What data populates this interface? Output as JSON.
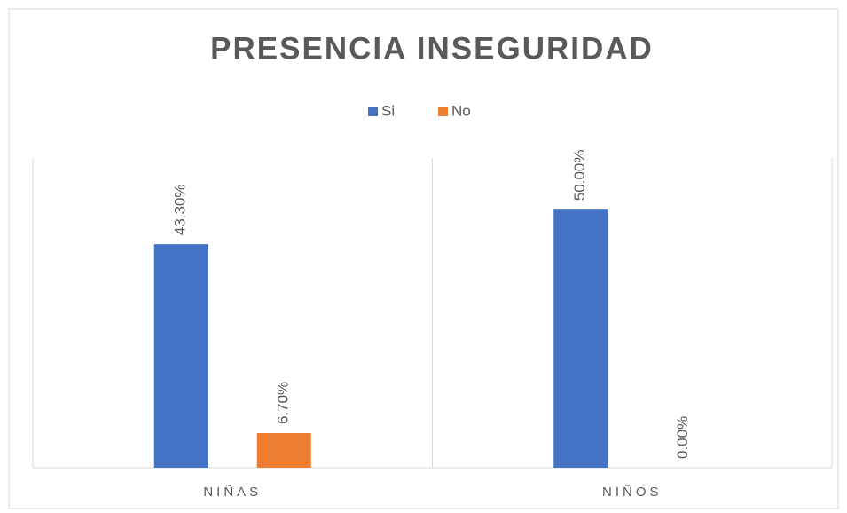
{
  "chart_data": {
    "type": "bar",
    "title": "PRESENCIA INSEGURIDAD",
    "categories": [
      "NIÑAS",
      "NIÑOS"
    ],
    "series": [
      {
        "name": "Si",
        "color": "#4472c4",
        "values": [
          43.3,
          50.0
        ],
        "value_labels": [
          "43.30%",
          "50.00%"
        ]
      },
      {
        "name": "No",
        "color": "#ed7d31",
        "values": [
          6.7,
          0
        ],
        "value_labels": [
          "6.70%",
          "0.00%"
        ]
      }
    ],
    "ylim": [
      0,
      60
    ],
    "legend": "top"
  }
}
